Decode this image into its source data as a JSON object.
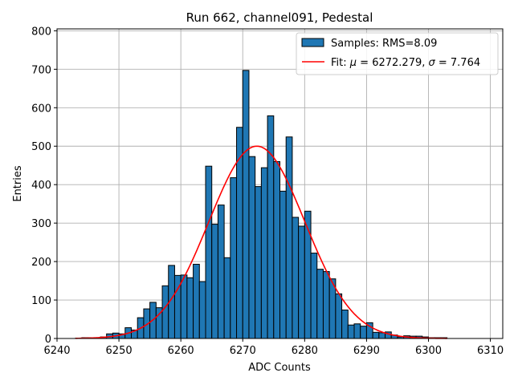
{
  "chart_data": {
    "type": "bar",
    "title": "Run 662, channel091, Pedestal",
    "xlabel": "ADC Counts",
    "ylabel": "Entries",
    "xlim": [
      6240,
      6312
    ],
    "ylim": [
      0,
      805
    ],
    "xticks": [
      6240,
      6250,
      6260,
      6270,
      6280,
      6290,
      6300,
      6310
    ],
    "yticks": [
      0,
      100,
      200,
      300,
      400,
      500,
      600,
      700,
      800
    ],
    "grid": true,
    "legend_position": "top-right",
    "colors": {
      "bars": "#1f77b4",
      "bar_edge": "#000000",
      "fit": "#ff0000",
      "grid": "#b0b0b0"
    },
    "histogram": {
      "name": "Samples: RMS=8.09",
      "bin_start": 6243,
      "bin_width": 1,
      "counts": [
        1,
        2,
        2,
        2,
        4,
        12,
        14,
        12,
        28,
        22,
        54,
        77,
        94,
        80,
        137,
        190,
        164,
        165,
        158,
        193,
        148,
        448,
        297,
        347,
        210,
        418,
        549,
        697,
        473,
        395,
        444,
        579,
        460,
        383,
        524,
        315,
        292,
        331,
        222,
        180,
        174,
        155,
        116,
        74,
        35,
        38,
        32,
        41,
        16,
        15,
        17,
        9,
        4,
        7,
        6,
        6,
        4,
        2,
        2,
        2
      ]
    },
    "fit": {
      "name": "Fit: μ = 6272.279, σ = 7.764",
      "legend_prefix": "Fit: ",
      "mu_label": "μ",
      "mu_value": " = 6272.279, ",
      "sigma_label": "σ",
      "sigma_value": " = 7.764",
      "mu": 6272.279,
      "sigma": 7.764,
      "amplitude": 500,
      "x_range": [
        6243,
        6303
      ]
    }
  }
}
